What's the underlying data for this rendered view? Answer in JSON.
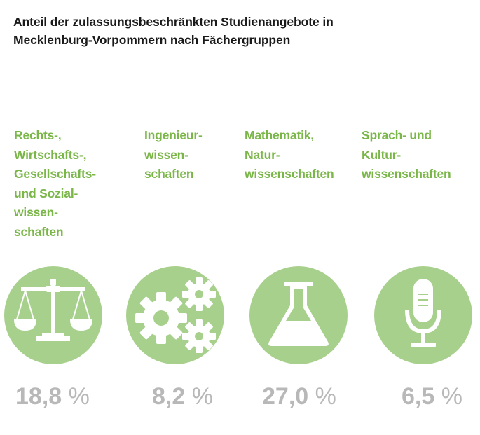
{
  "title_lines": [
    "Anteil der zulassungsbeschränkten Studienangebote in",
    "Mecklenburg-Vorpommern nach Fächergruppen"
  ],
  "colors": {
    "accent": "#7ab648",
    "circle": "#a8d08d",
    "value": "#b8b8b8",
    "icon": "#ffffff"
  },
  "chart_data": {
    "type": "table",
    "title": "Anteil der zulassungsbeschränkten Studienangebote in Mecklenburg-Vorpommern nach Fächergruppen",
    "unit": "%",
    "categories": [
      {
        "label_lines": [
          "Rechts-,",
          "Wirtschafts-,",
          "Gesellschafts-",
          "und Sozial-",
          "wissen-",
          "schaften"
        ],
        "value": 18.8,
        "value_text": "18,8",
        "icon": "scales-icon"
      },
      {
        "label_lines": [
          "Ingenieur-",
          "wissen-",
          "schaften"
        ],
        "value": 8.2,
        "value_text": "8,2",
        "icon": "gears-icon"
      },
      {
        "label_lines": [
          "Mathematik,",
          "Natur-",
          "wissenschaften"
        ],
        "value": 27.0,
        "value_text": "27,0",
        "icon": "flask-icon"
      },
      {
        "label_lines": [
          "Sprach- und",
          "Kultur-",
          "wissenschaften"
        ],
        "value": 6.5,
        "value_text": "6,5",
        "icon": "microphone-icon"
      }
    ]
  }
}
